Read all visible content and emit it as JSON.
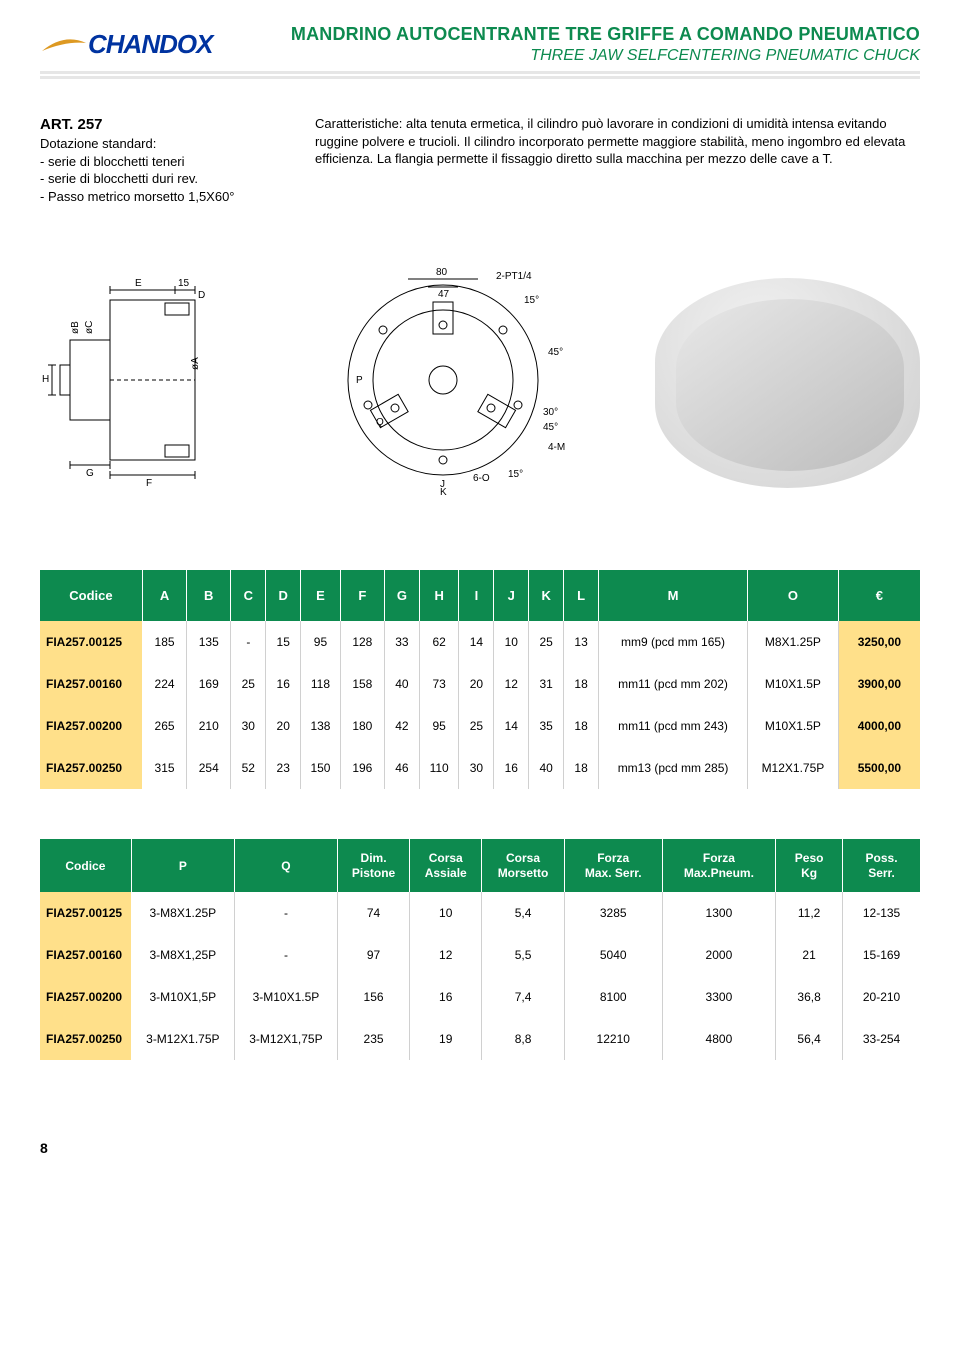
{
  "logo": "CHANDOX",
  "title_it": "MANDRINO AUTOCENTRANTE TRE GRIFFE A COMANDO PNEUMATICO",
  "title_en": "THREE JAW SELFCENTERING PNEUMATIC CHUCK",
  "art_label": "ART. 257",
  "left_lines": [
    "Dotazione standard:",
    "- serie di blocchetti teneri",
    "- serie di blocchetti duri rev.",
    "- Passo metrico morsetto 1,5X60°"
  ],
  "right_text": "Caratteristiche: alta tenuta ermetica, il cilindro può lavorare in condizioni di umidità intensa evitando ruggine polvere e trucioli. Il cilindro incorporato permette maggiore stabilità, meno ingombro ed elevata efficienza. La flangia permette il fissaggio diretto sulla macchina per mezzo delle cave a T.",
  "diagram_labels": {
    "E": "E",
    "D": "D",
    "F": "F",
    "G": "G",
    "H": "H",
    "B": "øB",
    "C": "øC",
    "A": "øA",
    "P": "P",
    "Q": "Q",
    "J": "J",
    "K": "K",
    "d15": "15",
    "d80": "80",
    "d47": "47",
    "pt": "2-PT1/4",
    "a15": "15°",
    "a45": "45°",
    "a30": "30°",
    "a45b": "45°",
    "m4": "4-M",
    "o6": "6-O",
    "a15b": "15°"
  },
  "table1": {
    "headers": [
      "Codice",
      "A",
      "B",
      "C",
      "D",
      "E",
      "F",
      "G",
      "H",
      "I",
      "J",
      "K",
      "L",
      "M",
      "O",
      "€"
    ],
    "col_widths": [
      "88",
      "38",
      "38",
      "30",
      "30",
      "34",
      "38",
      "30",
      "34",
      "30",
      "30",
      "30",
      "30",
      "128",
      "78",
      "70"
    ],
    "rows": [
      [
        "FIA257.00125",
        "185",
        "135",
        "-",
        "15",
        "95",
        "128",
        "33",
        "62",
        "14",
        "10",
        "25",
        "13",
        "mm9 (pcd mm 165)",
        "M8X1.25P",
        "3250,00"
      ],
      [
        "FIA257.00160",
        "224",
        "169",
        "25",
        "16",
        "118",
        "158",
        "40",
        "73",
        "20",
        "12",
        "31",
        "18",
        "mm11 (pcd mm 202)",
        "M10X1.5P",
        "3900,00"
      ],
      [
        "FIA257.00200",
        "265",
        "210",
        "30",
        "20",
        "138",
        "180",
        "42",
        "95",
        "25",
        "14",
        "35",
        "18",
        "mm11 (pcd mm 243)",
        "M10X1.5P",
        "4000,00"
      ],
      [
        "FIA257.00250",
        "315",
        "254",
        "52",
        "23",
        "150",
        "196",
        "46",
        "110",
        "30",
        "16",
        "40",
        "18",
        "mm13 (pcd mm 285)",
        "M12X1.75P",
        "5500,00"
      ]
    ]
  },
  "table2": {
    "headers": [
      "Codice",
      "P",
      "Q",
      "Dim.\nPistone",
      "Corsa\nAssiale",
      "Corsa\nMorsetto",
      "Forza\nMax. Serr.",
      "Forza\nMax.Pneum.",
      "Peso\nKg",
      "Poss.\nSerr."
    ],
    "col_widths": [
      "88",
      "100",
      "100",
      "70",
      "70",
      "80",
      "95",
      "110",
      "65",
      "75"
    ],
    "rows": [
      [
        "FIA257.00125",
        "3-M8X1.25P",
        "-",
        "74",
        "10",
        "5,4",
        "3285",
        "1300",
        "11,2",
        "12-135"
      ],
      [
        "FIA257.00160",
        "3-M8X1,25P",
        "-",
        "97",
        "12",
        "5,5",
        "5040",
        "2000",
        "21",
        "15-169"
      ],
      [
        "FIA257.00200",
        "3-M10X1,5P",
        "3-M10X1.5P",
        "156",
        "16",
        "7,4",
        "8100",
        "3300",
        "36,8",
        "20-210"
      ],
      [
        "FIA257.00250",
        "3-M12X1.75P",
        "3-M12X1,75P",
        "235",
        "19",
        "8,8",
        "12210",
        "4800",
        "56,4",
        "33-254"
      ]
    ]
  },
  "page_number": "8",
  "colors": {
    "green": "#0d8a4f",
    "yellow": "#ffe08a",
    "blue": "#0033a0",
    "gray_line": "#e6e6e6"
  }
}
